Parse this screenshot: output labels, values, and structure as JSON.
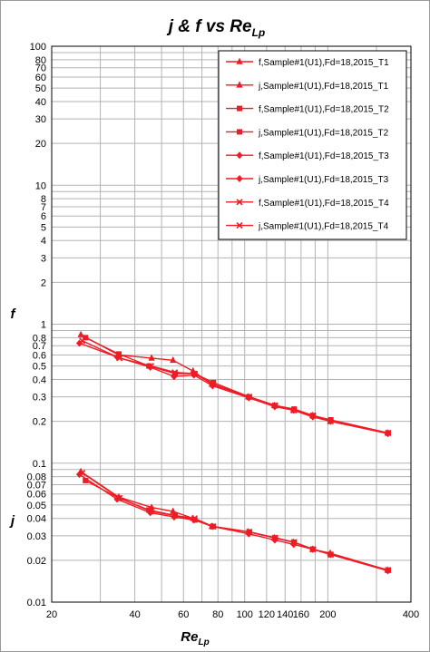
{
  "chart_data": {
    "type": "line",
    "title": "j & f vs Re",
    "title_subscript": "Lp",
    "xlabel": "Re",
    "xlabel_subscript": "Lp",
    "ylabel_f": "f",
    "ylabel_j": "j",
    "x_scale": "log",
    "y_scale": "log",
    "xlim": [
      20,
      400
    ],
    "ylim": [
      0.01,
      100
    ],
    "grid": true,
    "legend_position": "top-right",
    "x_tick_labels": [
      {
        "value": 20,
        "label": "20"
      },
      {
        "value": 40,
        "label": "40"
      },
      {
        "value": 60,
        "label": "60"
      },
      {
        "value": 80,
        "label": "80"
      },
      {
        "value": 100,
        "label": "100"
      },
      {
        "value": 120,
        "label": "120"
      },
      {
        "value": 140,
        "label": "140"
      },
      {
        "value": 160,
        "label": "160"
      },
      {
        "value": 200,
        "label": "200"
      },
      {
        "value": 400,
        "label": "400"
      }
    ],
    "x_minor_grid": [
      30,
      50,
      70,
      90,
      180,
      300
    ],
    "y_tick_labels": [
      {
        "value": 0.01,
        "label": "0.01"
      },
      {
        "value": 0.02,
        "label": "0.02"
      },
      {
        "value": 0.03,
        "label": "0.03"
      },
      {
        "value": 0.04,
        "label": "0.04"
      },
      {
        "value": 0.05,
        "label": "0.05"
      },
      {
        "value": 0.06,
        "label": "0.06"
      },
      {
        "value": 0.07,
        "label": "0.07"
      },
      {
        "value": 0.08,
        "label": "0.08"
      },
      {
        "value": 0.1,
        "label": "0.1"
      },
      {
        "value": 0.2,
        "label": "0.2"
      },
      {
        "value": 0.3,
        "label": "0.3"
      },
      {
        "value": 0.4,
        "label": "0.4"
      },
      {
        "value": 0.5,
        "label": "0.5"
      },
      {
        "value": 0.6,
        "label": "0.6"
      },
      {
        "value": 0.7,
        "label": "0.7"
      },
      {
        "value": 0.8,
        "label": "0.8"
      },
      {
        "value": 1,
        "label": "1"
      },
      {
        "value": 2,
        "label": "2"
      },
      {
        "value": 3,
        "label": "3"
      },
      {
        "value": 4,
        "label": "4"
      },
      {
        "value": 5,
        "label": "5"
      },
      {
        "value": 6,
        "label": "6"
      },
      {
        "value": 7,
        "label": "7"
      },
      {
        "value": 8,
        "label": "8"
      },
      {
        "value": 10,
        "label": "10"
      },
      {
        "value": 20,
        "label": "20"
      },
      {
        "value": 30,
        "label": "30"
      },
      {
        "value": 40,
        "label": "40"
      },
      {
        "value": 50,
        "label": "50"
      },
      {
        "value": 60,
        "label": "60"
      },
      {
        "value": 70,
        "label": "70"
      },
      {
        "value": 80,
        "label": "80"
      },
      {
        "value": 100,
        "label": "100"
      }
    ],
    "colors": {
      "series": "#ee1c24",
      "grid": "#b3b3b3",
      "axis": "#000000"
    },
    "series": [
      {
        "name": "f,Sample#1(U1),Fd=18,2015_T1",
        "marker": "triangle",
        "points": [
          [
            25.5,
            0.84
          ],
          [
            35,
            0.6
          ],
          [
            46,
            0.57
          ],
          [
            55,
            0.55
          ],
          [
            65,
            0.46
          ],
          [
            76,
            0.37
          ],
          [
            103,
            0.3
          ],
          [
            128,
            0.26
          ],
          [
            150,
            0.24
          ],
          [
            176,
            0.22
          ],
          [
            204,
            0.2
          ],
          [
            329,
            0.165
          ]
        ]
      },
      {
        "name": "j,Sample#1(U1),Fd=18,2015_T1",
        "marker": "triangle",
        "points": [
          [
            25.5,
            0.087
          ],
          [
            35,
            0.057
          ],
          [
            46,
            0.048
          ],
          [
            55,
            0.045
          ],
          [
            65,
            0.04
          ],
          [
            76,
            0.035
          ],
          [
            103,
            0.032
          ],
          [
            128,
            0.029
          ],
          [
            150,
            0.027
          ],
          [
            176,
            0.024
          ],
          [
            204,
            0.0225
          ],
          [
            329,
            0.017
          ]
        ]
      },
      {
        "name": "f,Sample#1(U1),Fd=18,2015_T2",
        "marker": "square",
        "points": [
          [
            26.5,
            0.8
          ],
          [
            35,
            0.61
          ],
          [
            45,
            0.5
          ],
          [
            56,
            0.44
          ],
          [
            66,
            0.44
          ],
          [
            77,
            0.38
          ],
          [
            104,
            0.3
          ],
          [
            129,
            0.26
          ],
          [
            151,
            0.245
          ],
          [
            177,
            0.22
          ],
          [
            205,
            0.205
          ],
          [
            331,
            0.165
          ]
        ]
      },
      {
        "name": "j,Sample#1(U1),Fd=18,2015_T2",
        "marker": "square",
        "points": [
          [
            26.5,
            0.075
          ],
          [
            35,
            0.056
          ],
          [
            45,
            0.046
          ],
          [
            56,
            0.042
          ],
          [
            66,
            0.039
          ],
          [
            77,
            0.035
          ],
          [
            104,
            0.032
          ],
          [
            129,
            0.029
          ],
          [
            151,
            0.027
          ],
          [
            177,
            0.024
          ],
          [
            205,
            0.022
          ],
          [
            331,
            0.017
          ]
        ]
      },
      {
        "name": "f,Sample#1(U1),Fd=18,2015_T3",
        "marker": "diamond",
        "points": [
          [
            25.2,
            0.73
          ],
          [
            34.5,
            0.58
          ],
          [
            45.5,
            0.49
          ],
          [
            55.5,
            0.42
          ],
          [
            65.5,
            0.43
          ],
          [
            76.5,
            0.36
          ],
          [
            103.5,
            0.295
          ],
          [
            128.5,
            0.255
          ],
          [
            150.5,
            0.24
          ],
          [
            176.5,
            0.215
          ],
          [
            204.5,
            0.2
          ],
          [
            330,
            0.163
          ]
        ]
      },
      {
        "name": "j,Sample#1(U1),Fd=18,2015_T3",
        "marker": "diamond",
        "points": [
          [
            25.2,
            0.083
          ],
          [
            34.5,
            0.055
          ],
          [
            45.5,
            0.044
          ],
          [
            55.5,
            0.041
          ],
          [
            65.5,
            0.039
          ],
          [
            76.5,
            0.035
          ],
          [
            103.5,
            0.031
          ],
          [
            128.5,
            0.028
          ],
          [
            150.5,
            0.026
          ],
          [
            176.5,
            0.024
          ],
          [
            204.5,
            0.022
          ],
          [
            330,
            0.0168
          ]
        ]
      },
      {
        "name": "f,Sample#1(U1),Fd=18,2015_T4",
        "marker": "x",
        "points": [
          [
            25.8,
            0.76
          ],
          [
            35.2,
            0.57
          ],
          [
            45.8,
            0.5
          ],
          [
            55.8,
            0.45
          ],
          [
            65.8,
            0.44
          ],
          [
            76.8,
            0.37
          ],
          [
            103.8,
            0.3
          ],
          [
            128.8,
            0.26
          ],
          [
            150.8,
            0.24
          ],
          [
            176.8,
            0.22
          ],
          [
            204.8,
            0.2
          ],
          [
            330.5,
            0.165
          ]
        ]
      },
      {
        "name": "j,Sample#1(U1),Fd=18,2015_T4",
        "marker": "x",
        "points": [
          [
            25.8,
            0.085
          ],
          [
            35.2,
            0.056
          ],
          [
            45.8,
            0.045
          ],
          [
            55.8,
            0.042
          ],
          [
            65.8,
            0.04
          ],
          [
            76.8,
            0.035
          ],
          [
            103.8,
            0.032
          ],
          [
            128.8,
            0.029
          ],
          [
            150.8,
            0.027
          ],
          [
            176.8,
            0.024
          ],
          [
            204.8,
            0.022
          ],
          [
            330.5,
            0.017
          ]
        ]
      }
    ]
  }
}
